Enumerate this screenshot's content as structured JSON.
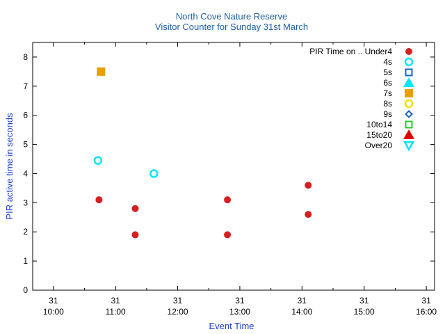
{
  "chart_data": {
    "type": "scatter",
    "title": "North Cove Nature Reserve",
    "subtitle": "Visitor Counter for Sunday 31st March",
    "xlabel": "Event Time",
    "ylabel": "PIR active time in seconds",
    "xlim": [
      "10:00",
      "16:00"
    ],
    "ylim": [
      0,
      8.5
    ],
    "x_ticks": [
      {
        "date": "31",
        "time": "10:00"
      },
      {
        "date": "31",
        "time": "11:00"
      },
      {
        "date": "31",
        "time": "12:00"
      },
      {
        "date": "31",
        "time": "13:00"
      },
      {
        "date": "31",
        "time": "14:00"
      },
      {
        "date": "31",
        "time": "15:00"
      },
      {
        "date": "31",
        "time": "16:00"
      }
    ],
    "y_ticks": [
      "0",
      "1",
      "2",
      "3",
      "4",
      "5",
      "6",
      "7",
      "8"
    ],
    "legend_title": "PIR Time on ..",
    "legend_position": "top-right",
    "series": [
      {
        "name": "Under4",
        "marker": "filled-circle",
        "color": "#d42020",
        "points": [
          {
            "x": "10:44",
            "y": 3.1
          },
          {
            "x": "11:19",
            "y": 2.8
          },
          {
            "x": "11:19",
            "y": 1.9
          },
          {
            "x": "12:48",
            "y": 3.1
          },
          {
            "x": "12:48",
            "y": 1.9
          },
          {
            "x": "14:06",
            "y": 3.6
          },
          {
            "x": "14:06",
            "y": 2.6
          }
        ]
      },
      {
        "name": "4s",
        "marker": "open-circle",
        "color": "#00e5ff",
        "points": [
          {
            "x": "10:43",
            "y": 4.45
          },
          {
            "x": "11:37",
            "y": 4.0
          }
        ]
      },
      {
        "name": "5s",
        "marker": "open-square",
        "color": "#1565c0",
        "points": []
      },
      {
        "name": "6s",
        "marker": "filled-triangle",
        "color": "#00e5ff",
        "points": []
      },
      {
        "name": "7s",
        "marker": "filled-square",
        "color": "#e8a000",
        "points": [
          {
            "x": "10:46",
            "y": 7.5
          }
        ]
      },
      {
        "name": "8s",
        "marker": "open-circle",
        "color": "#f5e000",
        "points": []
      },
      {
        "name": "9s",
        "marker": "open-diamond",
        "color": "#1565c0",
        "points": []
      },
      {
        "name": "10to14",
        "marker": "open-square",
        "color": "#22cc22",
        "points": []
      },
      {
        "name": "15to20",
        "marker": "filled-triangle",
        "color": "#e00000",
        "points": []
      },
      {
        "name": "Over20",
        "marker": "open-triangle-down",
        "color": "#00e5ff",
        "points": []
      }
    ]
  }
}
